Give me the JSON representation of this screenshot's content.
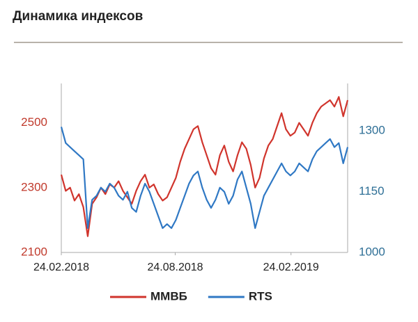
{
  "chart_data": {
    "type": "line",
    "title": "Динамика индексов",
    "x": [
      "24.02.2018",
      "03.03.2018",
      "10.03.2018",
      "17.03.2018",
      "24.03.2018",
      "31.03.2018",
      "07.04.2018",
      "14.04.2018",
      "21.04.2018",
      "28.04.2018",
      "05.05.2018",
      "12.05.2018",
      "19.05.2018",
      "26.05.2018",
      "02.06.2018",
      "09.06.2018",
      "16.06.2018",
      "23.06.2018",
      "30.06.2018",
      "07.07.2018",
      "14.07.2018",
      "21.07.2018",
      "28.07.2018",
      "04.08.2018",
      "11.08.2018",
      "18.08.2018",
      "25.08.2018",
      "01.09.2018",
      "08.09.2018",
      "15.09.2018",
      "22.09.2018",
      "29.09.2018",
      "06.10.2018",
      "13.10.2018",
      "20.10.2018",
      "27.10.2018",
      "03.11.2018",
      "10.11.2018",
      "17.11.2018",
      "24.11.2018",
      "01.12.2018",
      "08.12.2018",
      "15.12.2018",
      "22.12.2018",
      "29.12.2018",
      "05.01.2019",
      "12.01.2019",
      "19.01.2019",
      "26.01.2019",
      "02.02.2019",
      "09.02.2019",
      "16.02.2019",
      "23.02.2019",
      "02.03.2019",
      "09.03.2019",
      "16.03.2019",
      "23.03.2019",
      "30.03.2019",
      "06.04.2019",
      "13.04.2019",
      "20.04.2019",
      "27.04.2019",
      "04.05.2019",
      "11.05.2019",
      "18.05.2019",
      "25.05.2019"
    ],
    "xlim": [
      "24.02.2018",
      "25.05.2019"
    ],
    "xticks": [
      "24.02.2018",
      "24.08.2018",
      "24.02.2019"
    ],
    "ylim": [
      2100,
      2600
    ],
    "yticks": [
      2100,
      2300,
      2500
    ],
    "y2lim": [
      1000,
      1400
    ],
    "y2ticks": [
      1000,
      1150,
      1300
    ],
    "grid": false,
    "legend": "bottom",
    "series": [
      {
        "name": "ММВБ",
        "color": "#d0342c",
        "values": [
          2340,
          2290,
          2300,
          2260,
          2280,
          2240,
          2150,
          2250,
          2270,
          2300,
          2280,
          2310,
          2300,
          2320,
          2290,
          2270,
          2250,
          2290,
          2320,
          2340,
          2300,
          2310,
          2280,
          2260,
          2270,
          2300,
          2330,
          2380,
          2420,
          2450,
          2480,
          2490,
          2440,
          2400,
          2360,
          2340,
          2400,
          2430,
          2380,
          2350,
          2400,
          2440,
          2420,
          2370,
          2300,
          2330,
          2390,
          2430,
          2450,
          2490,
          2530,
          2480,
          2460,
          2470,
          2500,
          2480,
          2460,
          2500,
          2530,
          2550,
          2560,
          2570,
          2550,
          2580,
          2520,
          2570
        ]
      },
      {
        "name": "RTS",
        "color": "#2f78c4",
        "axis": "y2",
        "values": [
          1310,
          1270,
          1260,
          1250,
          1240,
          1230,
          1060,
          1130,
          1140,
          1160,
          1150,
          1170,
          1160,
          1140,
          1130,
          1150,
          1110,
          1100,
          1140,
          1170,
          1150,
          1120,
          1090,
          1060,
          1070,
          1060,
          1080,
          1110,
          1140,
          1170,
          1190,
          1200,
          1160,
          1130,
          1110,
          1130,
          1160,
          1150,
          1120,
          1140,
          1180,
          1200,
          1160,
          1120,
          1060,
          1100,
          1140,
          1160,
          1180,
          1200,
          1220,
          1200,
          1190,
          1200,
          1220,
          1210,
          1200,
          1230,
          1250,
          1260,
          1270,
          1280,
          1260,
          1270,
          1220,
          1260
        ]
      }
    ]
  }
}
